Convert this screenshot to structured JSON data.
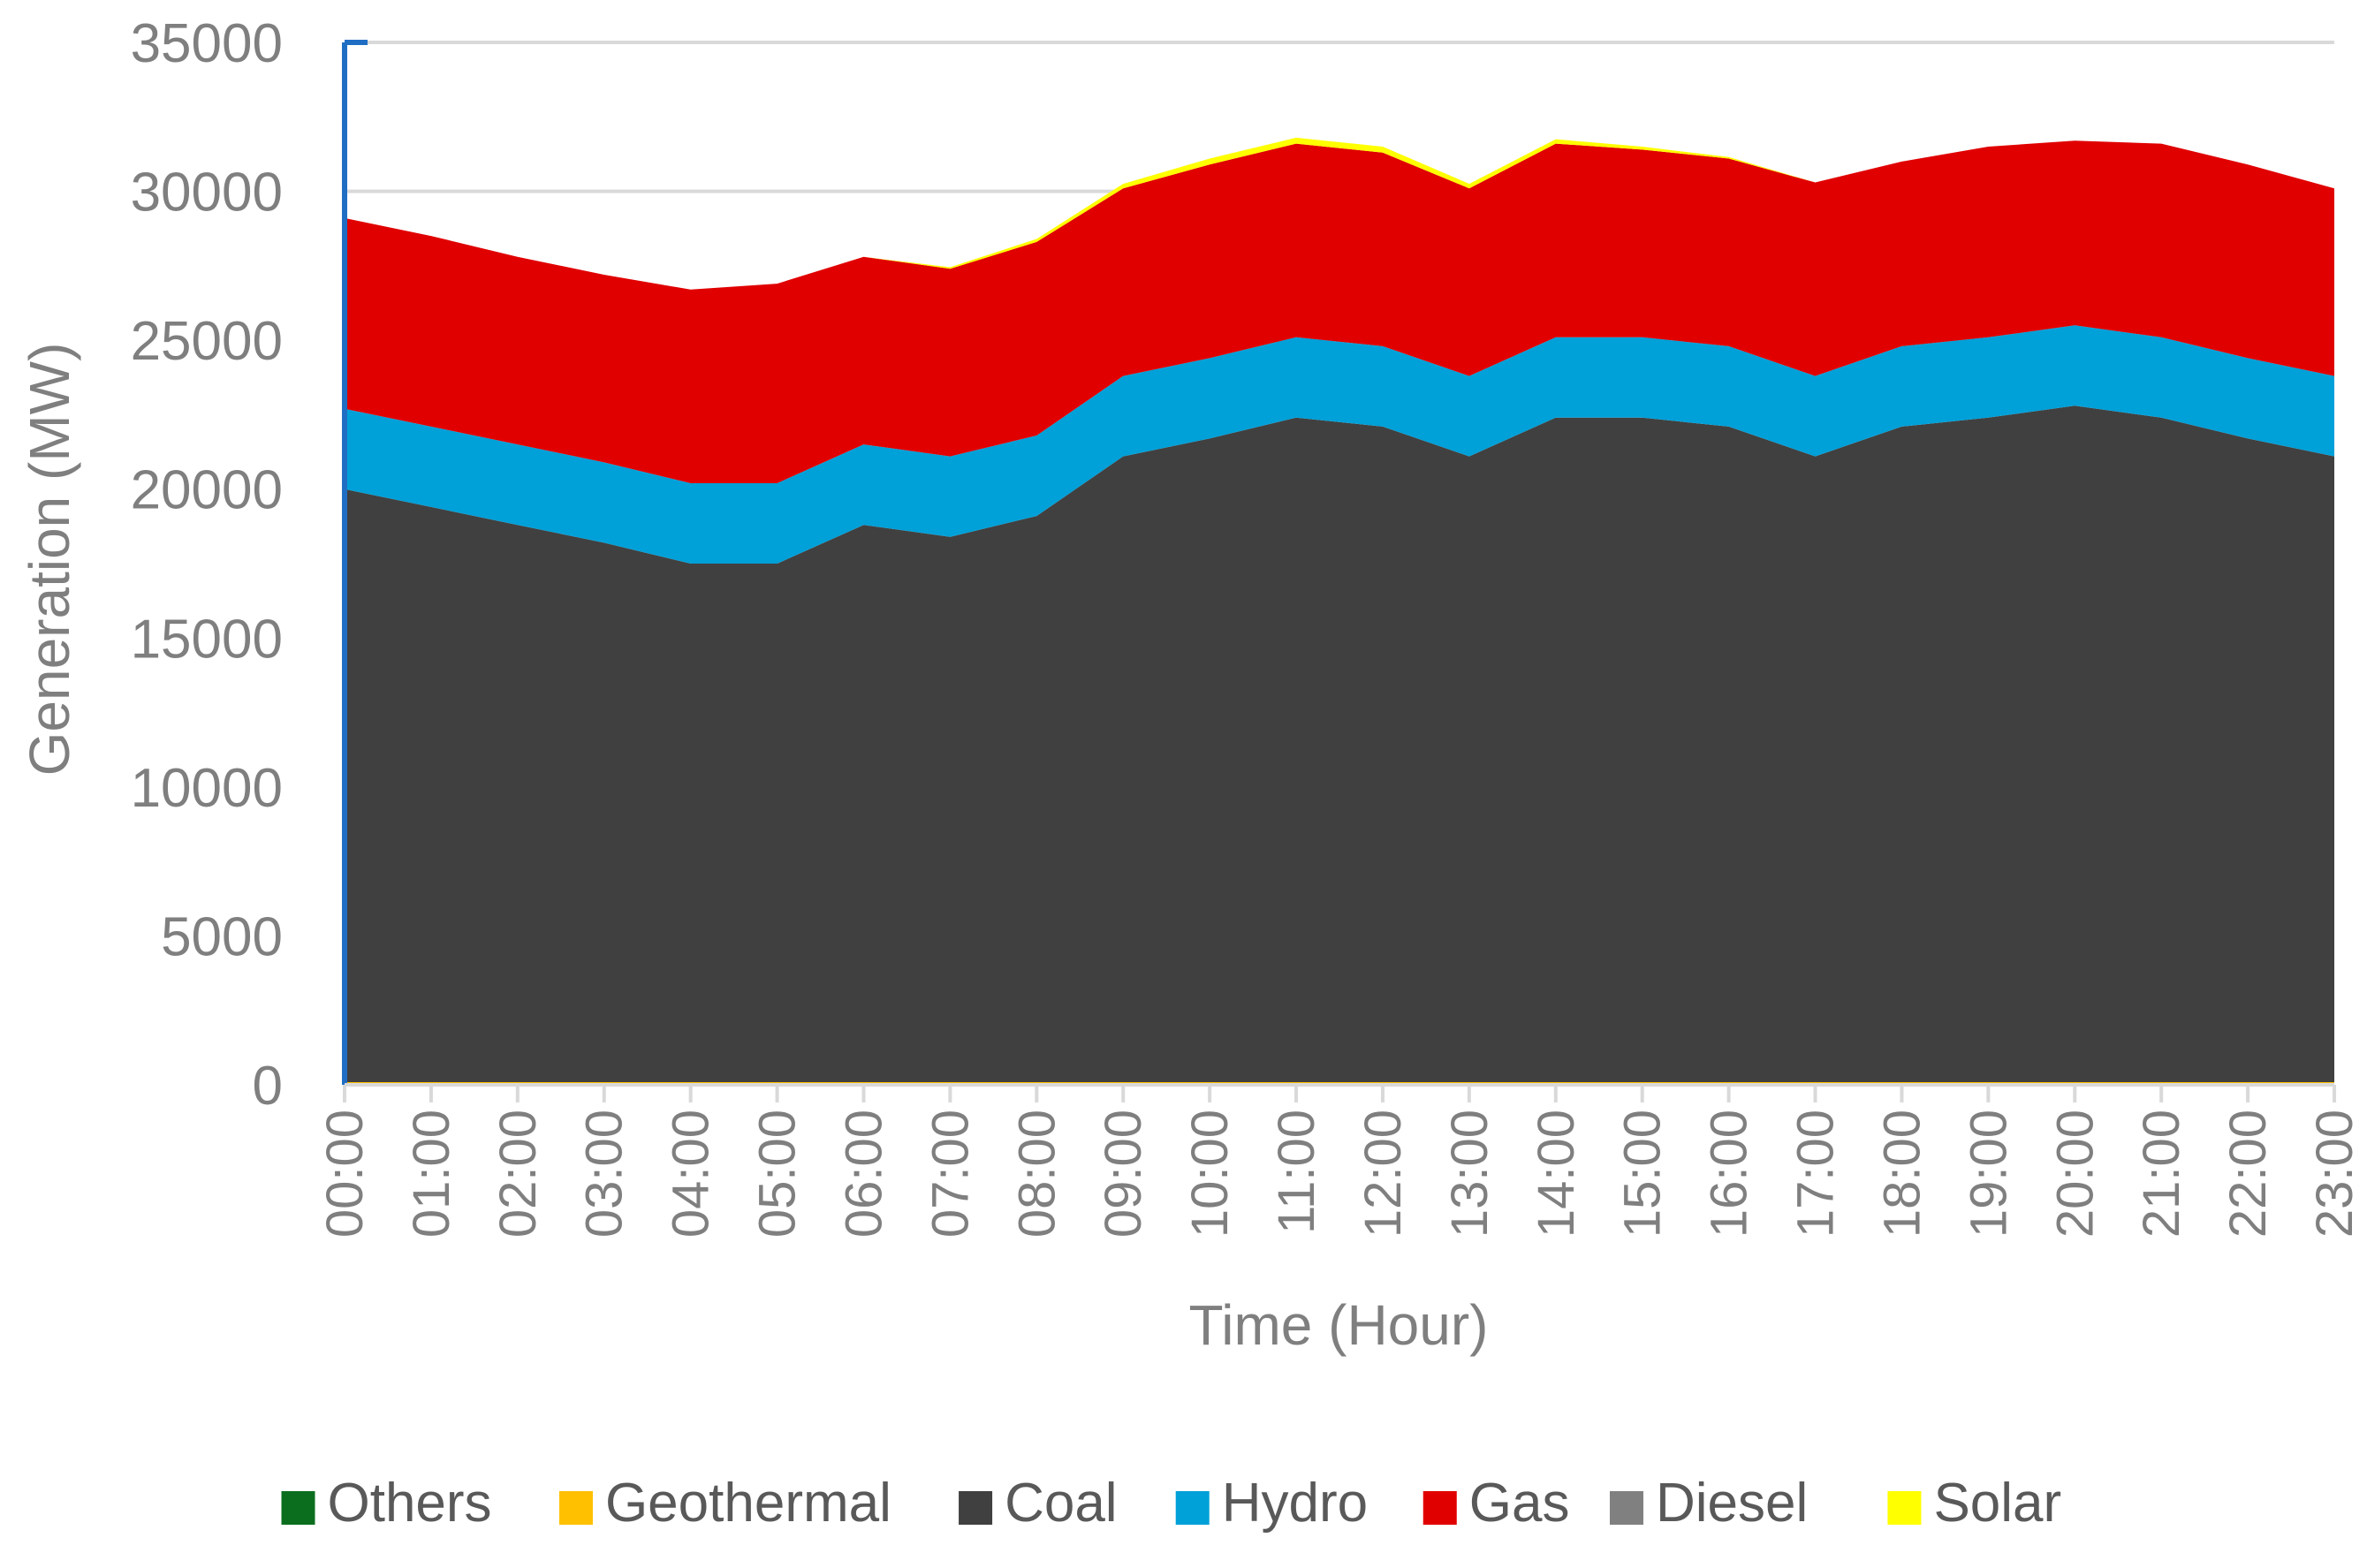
{
  "chart_data": {
    "type": "area",
    "stacked": true,
    "title": "",
    "xlabel": "Time (Hour)",
    "ylabel": "Generation (MW)",
    "ylim": [
      0,
      35000
    ],
    "yticks": [
      0,
      5000,
      10000,
      15000,
      20000,
      25000,
      30000,
      35000
    ],
    "ytick_labels": [
      "0",
      "5000",
      "10000",
      "15000",
      "20000",
      "25000",
      "30000",
      "35000"
    ],
    "grid": true,
    "legend_position": "bottom",
    "categories": [
      "00:00",
      "01:00",
      "02:00",
      "03:00",
      "04:00",
      "05:00",
      "06:00",
      "07:00",
      "08:00",
      "09:00",
      "10:00",
      "11:00",
      "12:00",
      "13:00",
      "14:00",
      "15:00",
      "16:00",
      "17:00",
      "18:00",
      "19:00",
      "20:00",
      "21:00",
      "22:00",
      "23:00"
    ],
    "series": [
      {
        "name": "Others",
        "color": "#0b6e1f",
        "values": [
          10,
          10,
          10,
          10,
          10,
          10,
          10,
          10,
          10,
          10,
          10,
          10,
          10,
          10,
          10,
          10,
          10,
          10,
          10,
          10,
          10,
          10,
          10,
          10
        ]
      },
      {
        "name": "Geothermal",
        "color": "#ffc000",
        "values": [
          80,
          80,
          80,
          80,
          80,
          80,
          80,
          80,
          80,
          80,
          80,
          80,
          80,
          80,
          80,
          80,
          80,
          80,
          80,
          80,
          80,
          80,
          80,
          80
        ]
      },
      {
        "name": "Coal",
        "color": "#404040",
        "values": [
          19910,
          19310,
          18710,
          18110,
          17410,
          17410,
          18710,
          18310,
          19010,
          21010,
          21610,
          22310,
          22010,
          21010,
          22310,
          22310,
          22010,
          21010,
          22010,
          22310,
          22710,
          22310,
          21610,
          21010
        ]
      },
      {
        "name": "Hydro",
        "color": "#00a0d8",
        "values": [
          2700,
          2700,
          2700,
          2700,
          2700,
          2700,
          2700,
          2700,
          2700,
          2700,
          2700,
          2700,
          2700,
          2700,
          2700,
          2700,
          2700,
          2700,
          2700,
          2700,
          2700,
          2700,
          2700,
          2700
        ]
      },
      {
        "name": "Gas",
        "color": "#e00000",
        "values": [
          6400,
          6400,
          6300,
          6300,
          6500,
          6700,
          6300,
          6300,
          6500,
          6300,
          6500,
          6500,
          6500,
          6300,
          6500,
          6300,
          6300,
          6500,
          6200,
          6400,
          6200,
          6500,
          6500,
          6300
        ]
      },
      {
        "name": "Diesel",
        "color": "#808080",
        "values": [
          0,
          0,
          0,
          0,
          0,
          0,
          0,
          0,
          0,
          0,
          0,
          0,
          0,
          0,
          0,
          0,
          0,
          0,
          0,
          0,
          0,
          0,
          0,
          0
        ]
      },
      {
        "name": "Solar",
        "color": "#ffff00",
        "values": [
          0,
          0,
          0,
          0,
          0,
          0,
          0,
          50,
          100,
          150,
          200,
          200,
          200,
          150,
          150,
          100,
          50,
          0,
          0,
          0,
          0,
          0,
          0,
          0
        ]
      }
    ]
  }
}
